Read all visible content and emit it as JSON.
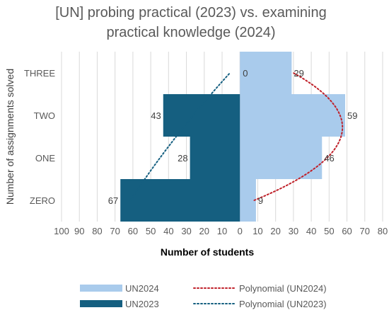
{
  "chart_data": {
    "type": "bar",
    "orientation": "horizontal-diverging",
    "title_lines": [
      "[UN] probing practical (2023) vs. examining",
      "practical knowledge (2024)"
    ],
    "categories": [
      "ZERO",
      "ONE",
      "TWO",
      "THREE"
    ],
    "series": [
      {
        "name": "UN2024",
        "values": [
          9,
          46,
          59,
          29
        ],
        "color": "#a9cbec",
        "side": "right"
      },
      {
        "name": "UN2023",
        "values": [
          67,
          28,
          43,
          0
        ],
        "color": "#155f80",
        "side": "left"
      }
    ],
    "trendlines": [
      {
        "name": "Polynomial (UN2024)",
        "of": "UN2024",
        "color": "#c0212a"
      },
      {
        "name": "Polynomial (UN2023)",
        "of": "UN2023",
        "color": "#155f80"
      }
    ],
    "xlabel": "Number of students",
    "ylabel": "Number of assignments solved",
    "xlim": [
      -100,
      80
    ],
    "x_ticks": [
      -100,
      -90,
      -80,
      -70,
      -60,
      -50,
      -40,
      -30,
      -20,
      -10,
      0,
      10,
      20,
      30,
      40,
      50,
      60,
      70,
      80
    ],
    "x_tick_labels": [
      "100",
      "90",
      "80",
      "70",
      "60",
      "50",
      "40",
      "30",
      "20",
      "10",
      "0",
      "10",
      "20",
      "30",
      "40",
      "50",
      "60",
      "70",
      "80"
    ],
    "grid": true,
    "legend_position": "bottom",
    "legend": [
      {
        "label": "UN2024",
        "kind": "bar",
        "color": "#a9cbec"
      },
      {
        "label": "Polynomial (UN2024)",
        "kind": "dotted",
        "color": "#c0212a"
      },
      {
        "label": "UN2023",
        "kind": "bar",
        "color": "#155f80"
      },
      {
        "label": "Polynomial (UN2023)",
        "kind": "dotted",
        "color": "#155f80"
      }
    ]
  }
}
